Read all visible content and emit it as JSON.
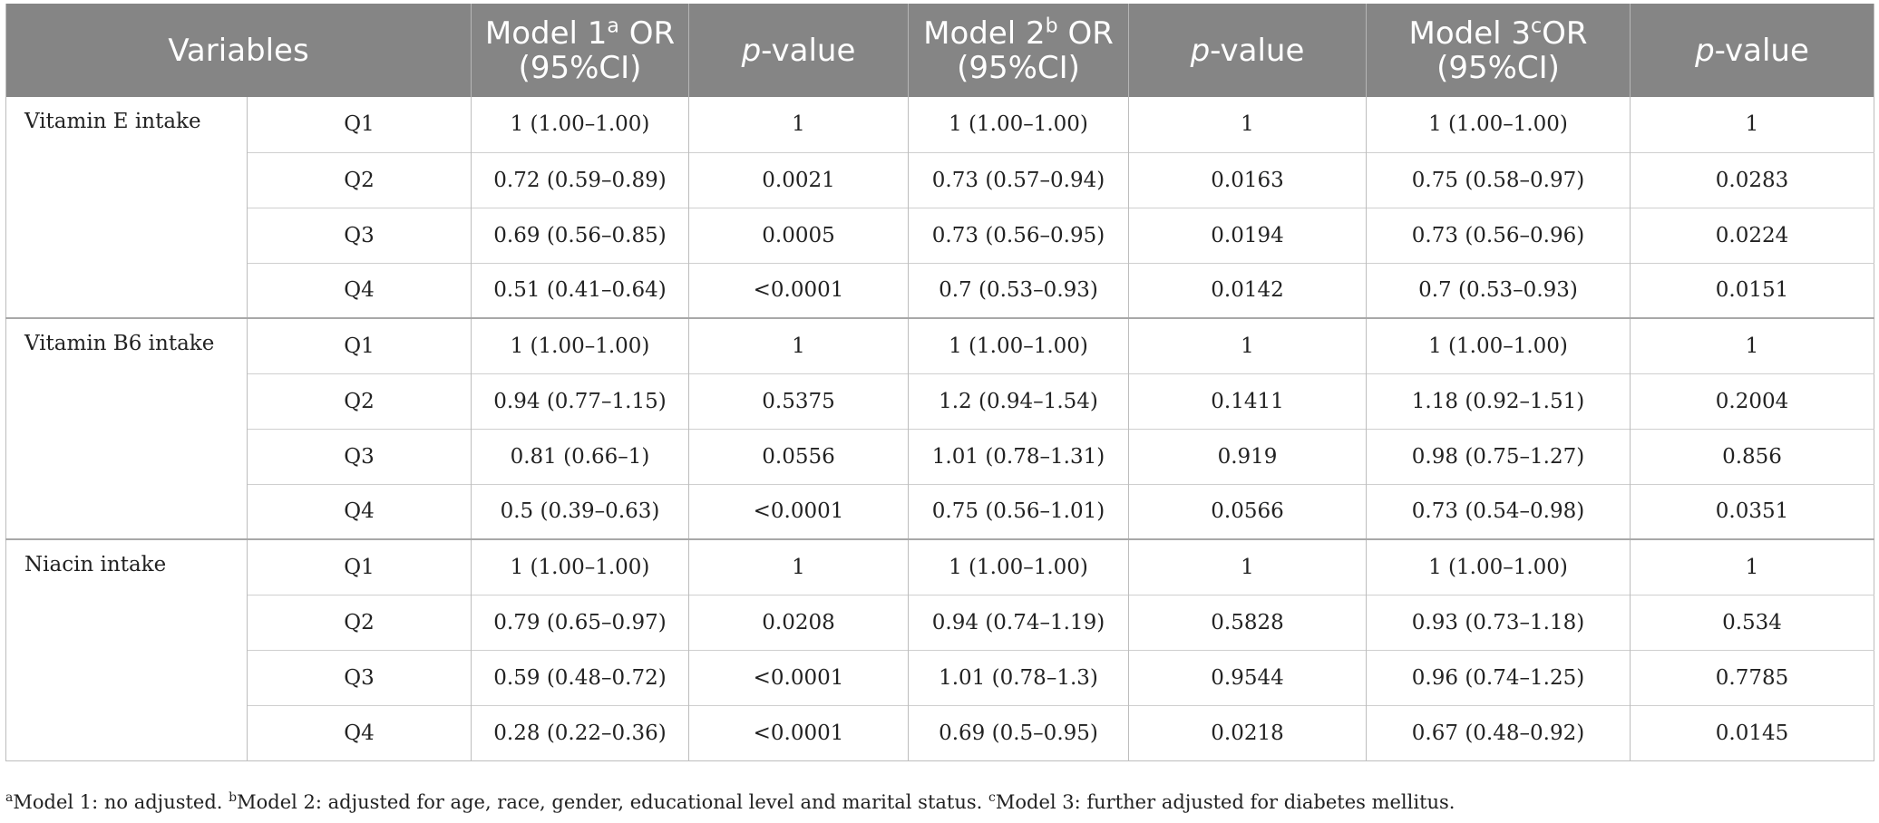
{
  "header": {
    "variables": "Variables",
    "model1_prefix": "Model 1",
    "model1_sup": "a",
    "model1_suffix": " OR",
    "model2_prefix": "Model 2",
    "model2_sup": "b",
    "model2_suffix": " OR",
    "model3_prefix": "Model 3",
    "model3_sup": "c",
    "model3_suffix": "OR",
    "ci_label": "(95%CI)",
    "p_italic": "p",
    "p_rest": "-value"
  },
  "groups": [
    {
      "label": "Vitamin E intake",
      "rows": [
        {
          "q": "Q1",
          "m1": "1 (1.00–1.00)",
          "p1": "1",
          "m2": "1 (1.00–1.00)",
          "p2": "1",
          "m3": "1 (1.00–1.00)",
          "p3": "1"
        },
        {
          "q": "Q2",
          "m1": "0.72 (0.59–0.89)",
          "p1": "0.0021",
          "m2": "0.73 (0.57–0.94)",
          "p2": "0.0163",
          "m3": "0.75 (0.58–0.97)",
          "p3": "0.0283"
        },
        {
          "q": "Q3",
          "m1": "0.69 (0.56–0.85)",
          "p1": "0.0005",
          "m2": "0.73 (0.56–0.95)",
          "p2": "0.0194",
          "m3": "0.73 (0.56–0.96)",
          "p3": "0.0224"
        },
        {
          "q": "Q4",
          "m1": "0.51 (0.41–0.64)",
          "p1": "<0.0001",
          "m2": "0.7 (0.53–0.93)",
          "p2": "0.0142",
          "m3": "0.7 (0.53–0.93)",
          "p3": "0.0151"
        }
      ]
    },
    {
      "label": "Vitamin B6 intake",
      "rows": [
        {
          "q": "Q1",
          "m1": "1 (1.00–1.00)",
          "p1": "1",
          "m2": "1 (1.00–1.00)",
          "p2": "1",
          "m3": "1 (1.00–1.00)",
          "p3": "1"
        },
        {
          "q": "Q2",
          "m1": "0.94 (0.77–1.15)",
          "p1": "0.5375",
          "m2": "1.2 (0.94–1.54)",
          "p2": "0.1411",
          "m3": "1.18 (0.92–1.51)",
          "p3": "0.2004"
        },
        {
          "q": "Q3",
          "m1": "0.81 (0.66–1)",
          "p1": "0.0556",
          "m2": "1.01 (0.78–1.31)",
          "p2": "0.919",
          "m3": "0.98 (0.75–1.27)",
          "p3": "0.856"
        },
        {
          "q": "Q4",
          "m1": "0.5 (0.39–0.63)",
          "p1": "<0.0001",
          "m2": "0.75 (0.56–1.01)",
          "p2": "0.0566",
          "m3": "0.73 (0.54–0.98)",
          "p3": "0.0351"
        }
      ]
    },
    {
      "label": "Niacin intake",
      "rows": [
        {
          "q": "Q1",
          "m1": "1 (1.00–1.00)",
          "p1": "1",
          "m2": "1 (1.00–1.00)",
          "p2": "1",
          "m3": "1 (1.00–1.00)",
          "p3": "1"
        },
        {
          "q": "Q2",
          "m1": "0.79 (0.65–0.97)",
          "p1": "0.0208",
          "m2": "0.94 (0.74–1.19)",
          "p2": "0.5828",
          "m3": "0.93 (0.73–1.18)",
          "p3": "0.534"
        },
        {
          "q": "Q3",
          "m1": "0.59 (0.48–0.72)",
          "p1": "<0.0001",
          "m2": "1.01 (0.78–1.3)",
          "p2": "0.9544",
          "m3": "0.96 (0.74–1.25)",
          "p3": "0.7785"
        },
        {
          "q": "Q4",
          "m1": "0.28 (0.22–0.36)",
          "p1": "<0.0001",
          "m2": "0.69 (0.5–0.95)",
          "p2": "0.0218",
          "m3": "0.67 (0.48–0.92)",
          "p3": "0.0145"
        }
      ]
    }
  ],
  "footnote": {
    "a_mark": "a",
    "a_text": "Model 1: no adjusted. ",
    "b_mark": "b",
    "b_text": "Model 2: adjusted for age, race, gender, educational level and marital status. ",
    "c_mark": "c",
    "c_text": "Model 3: further adjusted for diabetes mellitus."
  }
}
